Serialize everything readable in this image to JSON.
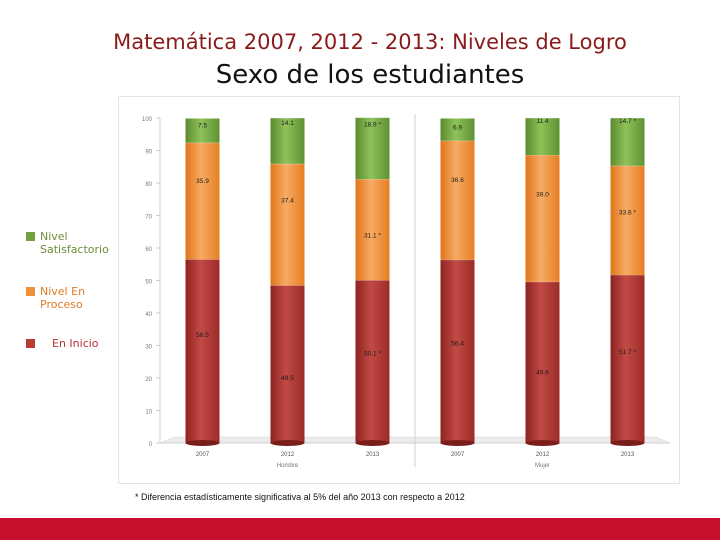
{
  "page": {
    "title": "Matemática 2007, 2012 - 2013: Niveles de Logro",
    "subtitle": "Sexo de los estudiantes",
    "footnote": "* Diferencia estadísticamente significativa al 5% del año 2013 con respecto a 2012"
  },
  "legend": [
    {
      "label_line1": "Nivel",
      "label_line2": "Satisfactorio",
      "color": "#6fa23f"
    },
    {
      "label_line1": "Nivel En",
      "label_line2": "Proceso",
      "color": "#f0923a"
    },
    {
      "label_line1": "En Inicio",
      "label_line2": "",
      "color": "#b83a36"
    }
  ],
  "colors": {
    "en_inicio": "#b83a36",
    "en_proceso": "#f0923a",
    "satisfactorio": "#6fa23f",
    "accent_bar": "#c8102e"
  },
  "chart_data": {
    "type": "bar",
    "stacked": true,
    "ylim": [
      0,
      100
    ],
    "yticks": [
      0,
      10,
      20,
      30,
      40,
      50,
      60,
      70,
      80,
      90,
      100
    ],
    "categories": [
      "2007",
      "2012",
      "2013",
      "2007",
      "2012",
      "2013"
    ],
    "groups": [
      {
        "label": "Hombre",
        "span": [
          0,
          2
        ]
      },
      {
        "label": "Mujer",
        "span": [
          3,
          5
        ]
      }
    ],
    "series": [
      {
        "name": "En Inicio",
        "key": "en_inicio",
        "values": [
          56.5,
          48.5,
          50.1,
          56.4,
          49.6,
          51.7
        ],
        "labels": [
          "56.5",
          "48.5",
          "50.1 *",
          "56.4",
          "49.6",
          "51.7 *"
        ]
      },
      {
        "name": "Nivel En Proceso",
        "key": "en_proceso",
        "values": [
          35.9,
          37.4,
          31.1,
          36.6,
          39.0,
          33.6
        ],
        "labels": [
          "35.9",
          "37.4",
          "31.1 *",
          "36.6",
          "39.0",
          "33.6 *"
        ]
      },
      {
        "name": "Nivel Satisfactorio",
        "key": "satisfactorio",
        "values": [
          7.5,
          14.1,
          18.9,
          6.9,
          11.4,
          14.7
        ],
        "labels": [
          "7.5",
          "14.1",
          "18.9 *",
          "6.9",
          "11.4",
          "14.7 *"
        ]
      }
    ]
  }
}
